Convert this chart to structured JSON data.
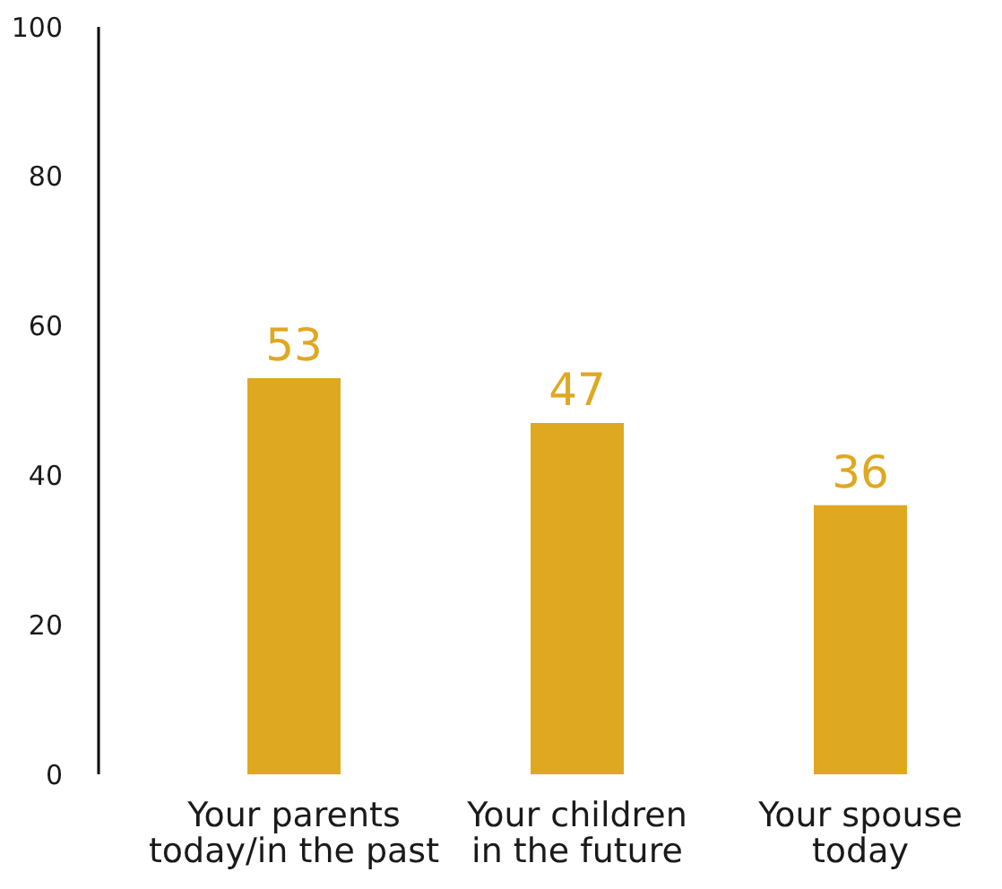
{
  "chart_data": {
    "type": "bar",
    "categories": [
      "Your parents today/in the past",
      "Your children in the future",
      "Your spouse today"
    ],
    "values": [
      53,
      47,
      36
    ],
    "color": "#dfa821",
    "ylim": [
      0,
      100
    ],
    "yticks": [
      0,
      20,
      40,
      60,
      80,
      100
    ],
    "grid": false,
    "data_labels": true
  }
}
